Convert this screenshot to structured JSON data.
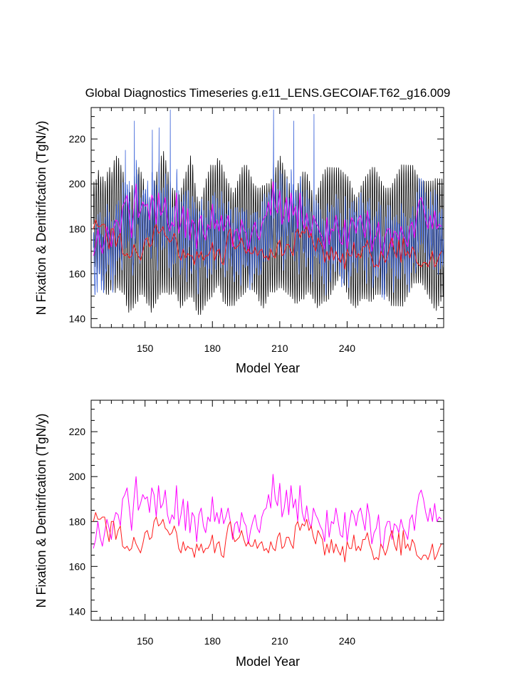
{
  "title": "Global Diagnostics Timeseries g.e11_LENS.GECOIAF.T62_g16.009",
  "colors": {
    "black_series": "#000000",
    "blue_series": "#3a62d8",
    "magenta_series": "#ff00ff",
    "red_series": "#ff1a1a"
  },
  "chart_data": [
    {
      "type": "line",
      "panel": "top",
      "xlabel": "Model Year",
      "ylabel": "N Fixation & Denitrifcation (TgN/y)",
      "xlim": [
        126,
        283
      ],
      "ylim": [
        136,
        234
      ],
      "xticks": [
        150,
        180,
        210,
        240
      ],
      "yticks": [
        140,
        160,
        180,
        200,
        220
      ],
      "series": [
        {
          "name": "black (monthly)",
          "color": "#000000",
          "x_start": 127,
          "x_end": 282.9,
          "step": 0.08333,
          "baseline": [
            182,
            181,
            183,
            180,
            178,
            176,
            178,
            180,
            179,
            181,
            183,
            182,
            180,
            178,
            172,
            168,
            170,
            172,
            175,
            177,
            179,
            178,
            176,
            172,
            170,
            168,
            171,
            174,
            177,
            180,
            182,
            183,
            181,
            178,
            176,
            175,
            174,
            172,
            170,
            172,
            175,
            177,
            179,
            181,
            178,
            172,
            168,
            167,
            169,
            172,
            175,
            177,
            179,
            180,
            181,
            183,
            181,
            178,
            176,
            174,
            173,
            172,
            171,
            173,
            175,
            177,
            179,
            180,
            181,
            180,
            178,
            176,
            175,
            173,
            172,
            172,
            173,
            175,
            176,
            177,
            178,
            180,
            182,
            183,
            181,
            179,
            177,
            175,
            173,
            171,
            172,
            174,
            176,
            177,
            178,
            178,
            176,
            173,
            171,
            170,
            172,
            174,
            176,
            177,
            178,
            179,
            180,
            181,
            182,
            183,
            182,
            180,
            178,
            176,
            174,
            172,
            170,
            170,
            172,
            174,
            175,
            176,
            176,
            177,
            178,
            179,
            178,
            177,
            176,
            175,
            174,
            173,
            172,
            173,
            174,
            175,
            176,
            177,
            178,
            179,
            180,
            181,
            182,
            181,
            180,
            179,
            178,
            177,
            176,
            175,
            174,
            173,
            173,
            174,
            175,
            176
          ],
          "amplitude": [
            18,
            20,
            22,
            22,
            24,
            24,
            26,
            26,
            25,
            28,
            28,
            28,
            27,
            26,
            25,
            24,
            25,
            26,
            27,
            28,
            27,
            26,
            25,
            24,
            23,
            24,
            25,
            26,
            27,
            28,
            29,
            30,
            28,
            26,
            24,
            22,
            22,
            23,
            24,
            25,
            26,
            27,
            28,
            30,
            29,
            27,
            25,
            24,
            24,
            25,
            26,
            27,
            28,
            27,
            26,
            27,
            28,
            29,
            28,
            27,
            26,
            25,
            24,
            24,
            25,
            26,
            27,
            27,
            26,
            25,
            24,
            23,
            23,
            24,
            25,
            26,
            25,
            24,
            23,
            24,
            25,
            26,
            27,
            28,
            27,
            26,
            25,
            24,
            23,
            23,
            24,
            25,
            26,
            27,
            26,
            25,
            24,
            23,
            23,
            24,
            25,
            26,
            27,
            28,
            28,
            27,
            26,
            25,
            24,
            23,
            23,
            24,
            25,
            26,
            26,
            25,
            24,
            23,
            23,
            24,
            25,
            26,
            27,
            28,
            28,
            27,
            26,
            25,
            24,
            23,
            23,
            24,
            25,
            26,
            27,
            28,
            29,
            30,
            29,
            28,
            27,
            26,
            25,
            24,
            23,
            22,
            22,
            23,
            24,
            25,
            26,
            27,
            28,
            27,
            26,
            25
          ]
        },
        {
          "name": "blue (monthly)",
          "color": "#3a62d8",
          "x_start": 127,
          "x_end": 282.9,
          "step": 0.08333,
          "spike_years": [
            141,
            145,
            153,
            156,
            161,
            207,
            216,
            225
          ],
          "spike_values": [
            215,
            228,
            224,
            225,
            233,
            233,
            228,
            231
          ]
        },
        {
          "name": "magenta (annual)",
          "color": "#ff00ff",
          "x": [
            127,
            128,
            129,
            130,
            131,
            132,
            133,
            134,
            135,
            136,
            137,
            138,
            139,
            140,
            141,
            142,
            143,
            144,
            145,
            146,
            147,
            148,
            149,
            150,
            151,
            152,
            153,
            154,
            155,
            156,
            157,
            158,
            159,
            160,
            161,
            162,
            163,
            164,
            165,
            166,
            167,
            168,
            169,
            170,
            171,
            172,
            173,
            174,
            175,
            176,
            177,
            178,
            179,
            180,
            181,
            182,
            183,
            184,
            185,
            186,
            187,
            188,
            189,
            190,
            191,
            192,
            193,
            194,
            195,
            196,
            197,
            198,
            199,
            200,
            201,
            202,
            203,
            204,
            205,
            206,
            207,
            208,
            209,
            210,
            211,
            212,
            213,
            214,
            215,
            216,
            217,
            218,
            219,
            220,
            221,
            222,
            223,
            224,
            225,
            226,
            227,
            228,
            229,
            230,
            231,
            232,
            233,
            234,
            235,
            236,
            237,
            238,
            239,
            240,
            241,
            242,
            243,
            244,
            245,
            246,
            247,
            248,
            249,
            250,
            251,
            252,
            253,
            254,
            255,
            256,
            257,
            258,
            259,
            260,
            261,
            262,
            263,
            264,
            265,
            266,
            267,
            268,
            269,
            270,
            271,
            272,
            273,
            274,
            275,
            276,
            277,
            278,
            279,
            280,
            281,
            282
          ],
          "values": [
            168,
            172,
            180,
            173,
            169,
            175,
            181,
            177,
            172,
            180,
            184,
            183,
            178,
            190,
            192,
            195,
            186,
            176,
            189,
            200,
            185,
            188,
            192,
            190,
            191,
            184,
            195,
            192,
            182,
            196,
            186,
            188,
            194,
            183,
            179,
            183,
            181,
            196,
            178,
            183,
            190,
            176,
            189,
            175,
            184,
            182,
            171,
            183,
            186,
            178,
            175,
            182,
            180,
            191,
            180,
            184,
            179,
            186,
            179,
            182,
            186,
            180,
            172,
            179,
            180,
            175,
            184,
            180,
            178,
            170,
            176,
            180,
            183,
            177,
            175,
            182,
            185,
            186,
            192,
            186,
            201,
            190,
            187,
            197,
            182,
            186,
            194,
            183,
            196,
            186,
            190,
            180,
            196,
            184,
            180,
            187,
            180,
            177,
            186,
            183,
            181,
            178,
            176,
            171,
            185,
            173,
            180,
            179,
            186,
            180,
            174,
            173,
            184,
            171,
            179,
            185,
            183,
            178,
            184,
            186,
            181,
            176,
            188,
            182,
            170,
            175,
            177,
            183,
            170,
            168,
            177,
            180,
            180,
            172,
            179,
            178,
            175,
            181,
            177,
            175,
            172,
            181,
            183,
            176,
            186,
            192,
            194,
            190,
            184,
            180,
            186,
            180,
            188,
            180,
            182,
            181
          ]
        },
        {
          "name": "red (annual)",
          "color": "#ff1a1a",
          "x": [
            127,
            128,
            129,
            130,
            131,
            132,
            133,
            134,
            135,
            136,
            137,
            138,
            139,
            140,
            141,
            142,
            143,
            144,
            145,
            146,
            147,
            148,
            149,
            150,
            151,
            152,
            153,
            154,
            155,
            156,
            157,
            158,
            159,
            160,
            161,
            162,
            163,
            164,
            165,
            166,
            167,
            168,
            169,
            170,
            171,
            172,
            173,
            174,
            175,
            176,
            177,
            178,
            179,
            180,
            181,
            182,
            183,
            184,
            185,
            186,
            187,
            188,
            189,
            190,
            191,
            192,
            193,
            194,
            195,
            196,
            197,
            198,
            199,
            200,
            201,
            202,
            203,
            204,
            205,
            206,
            207,
            208,
            209,
            210,
            211,
            212,
            213,
            214,
            215,
            216,
            217,
            218,
            219,
            220,
            221,
            222,
            223,
            224,
            225,
            226,
            227,
            228,
            229,
            230,
            231,
            232,
            233,
            234,
            235,
            236,
            237,
            238,
            239,
            240,
            241,
            242,
            243,
            244,
            245,
            246,
            247,
            248,
            249,
            250,
            251,
            252,
            253,
            254,
            255,
            256,
            257,
            258,
            259,
            260,
            261,
            262,
            263,
            264,
            265,
            266,
            267,
            268,
            269,
            270,
            271,
            272,
            273,
            274,
            275,
            276,
            277,
            278,
            279,
            280,
            281,
            282
          ],
          "values": [
            180,
            184,
            181,
            181,
            182,
            182,
            176,
            171,
            180,
            180,
            172,
            176,
            178,
            169,
            168,
            169,
            167,
            168,
            173,
            170,
            168,
            166,
            170,
            175,
            176,
            172,
            173,
            180,
            182,
            178,
            179,
            181,
            177,
            176,
            174,
            175,
            178,
            175,
            168,
            166,
            171,
            167,
            169,
            168,
            168,
            164,
            170,
            167,
            170,
            166,
            168,
            168,
            170,
            174,
            166,
            170,
            171,
            165,
            164,
            172,
            178,
            180,
            174,
            171,
            172,
            173,
            176,
            172,
            169,
            171,
            169,
            169,
            172,
            168,
            170,
            171,
            167,
            168,
            166,
            171,
            168,
            167,
            173,
            175,
            168,
            169,
            173,
            173,
            170,
            168,
            178,
            180,
            176,
            179,
            178,
            181,
            176,
            178,
            173,
            170,
            176,
            174,
            172,
            165,
            170,
            166,
            172,
            166,
            170,
            167,
            165,
            169,
            162,
            171,
            168,
            168,
            174,
            167,
            169,
            167,
            172,
            172,
            175,
            170,
            167,
            163,
            164,
            163,
            170,
            168,
            165,
            168,
            173,
            176,
            170,
            167,
            175,
            165,
            176,
            168,
            170,
            167,
            172,
            170,
            165,
            164,
            163,
            165,
            165,
            163,
            166,
            170,
            163,
            165,
            168,
            170
          ]
        }
      ]
    },
    {
      "type": "line",
      "panel": "bottom",
      "xlabel": "Model Year",
      "ylabel": "N Fixation & Denitrifcation (TgN/y)",
      "xlim": [
        126,
        283
      ],
      "ylim": [
        136,
        234
      ],
      "xticks": [
        150,
        180,
        210,
        240
      ],
      "yticks": [
        140,
        160,
        180,
        200,
        220
      ],
      "series": [
        {
          "name": "magenta (annual)",
          "color": "#ff00ff",
          "ref": "top.magenta"
        },
        {
          "name": "red (annual)",
          "color": "#ff1a1a",
          "ref": "top.red"
        }
      ]
    }
  ]
}
